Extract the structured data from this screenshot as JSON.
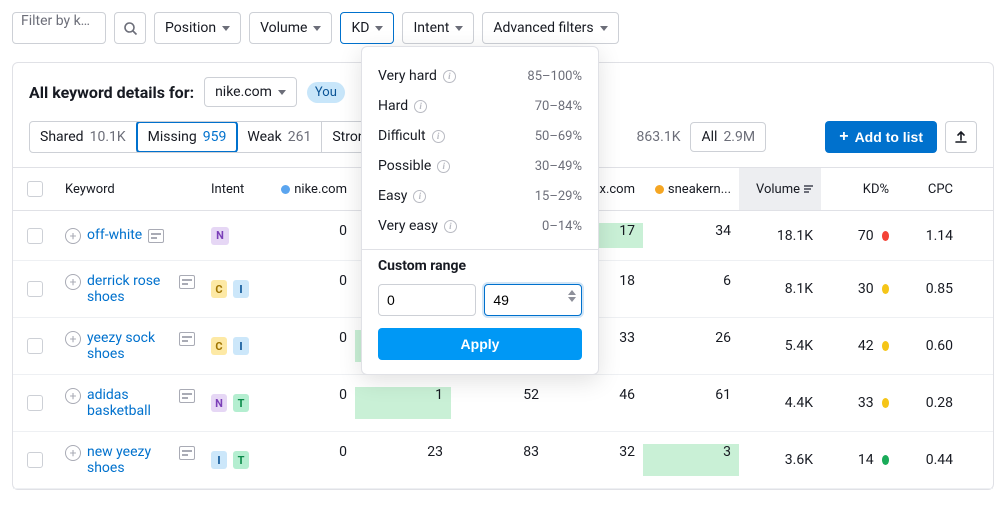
{
  "filters": {
    "input_placeholder": "Filter by ke...",
    "position": "Position",
    "volume": "Volume",
    "kd": "KD",
    "intent": "Intent",
    "advanced": "Advanced filters"
  },
  "dropdown": {
    "rows": [
      {
        "label": "Very hard",
        "range": "85–100%"
      },
      {
        "label": "Hard",
        "range": "70–84%"
      },
      {
        "label": "Difficult",
        "range": "50–69%"
      },
      {
        "label": "Possible",
        "range": "30–49%"
      },
      {
        "label": "Easy",
        "range": "15–29%"
      },
      {
        "label": "Very easy",
        "range": "0–14%"
      }
    ],
    "custom_title": "Custom range",
    "from": "0",
    "to": "49",
    "apply": "Apply"
  },
  "header": {
    "title": "All keyword details for:",
    "domain": "nike.com",
    "you_badge": "You"
  },
  "tabs": {
    "shared": {
      "label": "Shared",
      "count": "10.1K"
    },
    "missing": {
      "label": "Missing",
      "count": "959"
    },
    "weak": {
      "label": "Weak",
      "count": "261"
    },
    "strong": {
      "label": "Stron"
    },
    "extra": {
      "count": "863.1K"
    },
    "all": {
      "label": "All",
      "count": "2.9M"
    }
  },
  "actions": {
    "add": "Add to list"
  },
  "columns": {
    "keyword": "Keyword",
    "intent": "Intent",
    "comp1": "nike.com",
    "comp4": "ockx.com",
    "comp5": "sneakern...",
    "volume": "Volume",
    "kd": "KD%",
    "cpc": "CPC"
  },
  "rows": [
    {
      "kw": "off-white",
      "intent": [
        "N"
      ],
      "c1": "0",
      "c2": "",
      "c3": "",
      "c4": "17",
      "c5": "34",
      "vol": "18.1K",
      "kd": "70",
      "kd_color": "kd-red",
      "cpc": "1.14",
      "hl": "c4"
    },
    {
      "kw": "derrick rose shoes",
      "intent": [
        "C",
        "I"
      ],
      "c1": "0",
      "c2": "",
      "c3": "",
      "c4": "18",
      "c5": "6",
      "vol": "8.1K",
      "kd": "30",
      "kd_color": "kd-yellow",
      "cpc": "0.85",
      "hl": ""
    },
    {
      "kw": "yeezy sock shoes",
      "intent": [
        "C",
        "I"
      ],
      "c1": "0",
      "c2": "",
      "c3": "",
      "c4": "33",
      "c5": "26",
      "vol": "5.4K",
      "kd": "42",
      "kd_color": "kd-yellow",
      "cpc": "0.60",
      "hl": "c2"
    },
    {
      "kw": "adidas basketball",
      "intent": [
        "N",
        "T"
      ],
      "c1": "0",
      "c2": "1",
      "c3": "52",
      "c4": "46",
      "c5": "61",
      "vol": "4.4K",
      "kd": "33",
      "kd_color": "kd-yellow",
      "cpc": "0.28",
      "hl": "c2"
    },
    {
      "kw": "new yeezy shoes",
      "intent": [
        "I",
        "T"
      ],
      "c1": "0",
      "c2": "23",
      "c3": "83",
      "c4": "32",
      "c5": "3",
      "vol": "3.6K",
      "kd": "14",
      "kd_color": "kd-green",
      "cpc": "0.44",
      "hl": "c5"
    }
  ]
}
